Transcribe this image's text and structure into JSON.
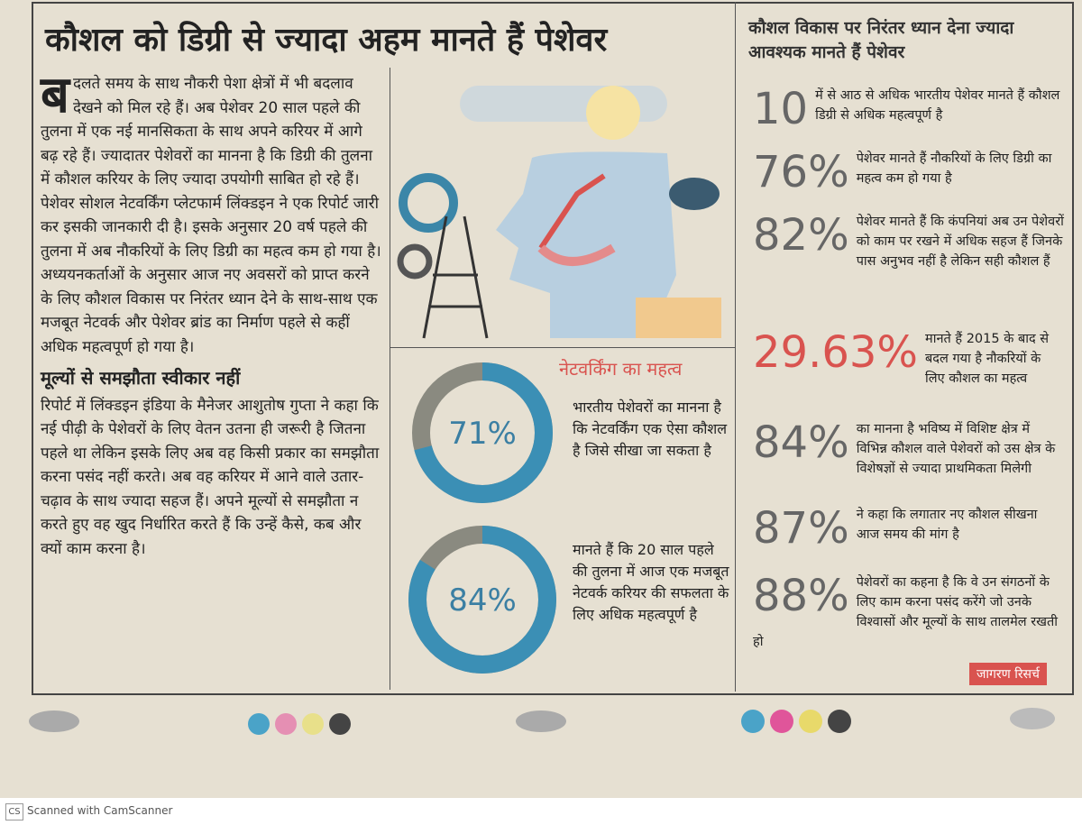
{
  "article": {
    "title": "कौशल को डिग्री से ज्यादा अहम मानते हैं पेशेवर",
    "dropcap": "ब",
    "para1": "दलते समय के साथ नौकरी पेशा क्षेत्रों में भी बदलाव देखने को मिल रहे हैं। अब पेशेवर 20 साल पहले की तुलना में एक नई मानसिकता के साथ अपने करियर में आगे बढ़ रहे हैं। ज्यादातर पेशेवरों का मानना है कि डिग्री की तुलना में कौशल करियर के लिए ज्यादा उपयोगी साबित हो रहे हैं। पेशेवर सोशल नेटवर्किंग प्लेटफार्म लिंक्डइन ने एक रिपोर्ट जारी कर इसकी जानकारी दी है। इसके अनुसार 20 वर्ष पहले की तुलना में अब नौकरियों के लिए डिग्री का महत्व कम हो गया है। अध्ययनकर्ताओं के अनुसार आज नए अवसरों को प्राप्त करने के लिए कौशल विकास पर निरंतर ध्यान देने के साथ-साथ एक मजबूत नेटवर्क और पेशेवर ब्रांड का निर्माण पहले से कहीं अधिक महत्वपूर्ण हो गया है।",
    "subheading": "मूल्यों से समझौता स्वीकार नहीं",
    "para2": "रिपोर्ट में लिंक्डइन इंडिया के मैनेजर आशुतोष गुप्ता ने कहा कि नई पीढ़ी के पेशेवरों के लिए वेतन उतना ही जरूरी है जितना पहले था लेकिन इसके लिए अब वह किसी प्रकार का समझौता करना पसंद नहीं करते। अब वह करियर में आने वाले उतार-चढ़ाव के साथ ज्यादा सहज हैं। अपने मूल्यों से समझौता न करते हुए वह खुद निर्धारित करते हैं कि उन्हें कैसे, कब और क्यों काम करना है।"
  },
  "networking": {
    "heading": "नेटवर्किंग का महत्व",
    "donuts": [
      {
        "value": 71,
        "label": "71%",
        "text": "भारतीय पेशेवरों का मानना है कि नेटवर्किंग एक ऐसा कौशल है जिसे सीखा जा सकता है"
      },
      {
        "value": 84,
        "label": "84%",
        "text": "मानते हैं कि 20 साल पहले की तुलना में आज एक मजबूत नेटवर्क करियर की सफलता के लिए अधिक महत्वपूर्ण है"
      }
    ]
  },
  "sidebar": {
    "heading": "कौशल विकास पर निरंतर ध्यान देना ज्यादा आवश्यक मानते हैं पेशेवर",
    "stats": [
      {
        "number": "10",
        "text": "में से आठ से अधिक भारतीय पेशेवर मानते हैं कौशल डिग्री से अधिक महत्वपूर्ण है"
      },
      {
        "number": "76%",
        "text": "पेशेवर मानते हैं नौकरियों के लिए डिग्री का महत्व कम हो गया है"
      },
      {
        "number": "82%",
        "text": "पेशेवर मानते हैं कि कंपनियां अब उन पेशेवरों को काम पर रखने में अधिक सहज हैं जिनके पास अनुभव नहीं है लेकिन सही कौशल हैं"
      },
      {
        "number": "29.63%",
        "text": "मानते हैं 2015 के बाद से बदल गया है नौकरियों के लिए कौशल का महत्व"
      },
      {
        "number": "84%",
        "text": "का मानना है भविष्य में विशिष्ट क्षेत्र में विभिन्न कौशल वाले पेशेवरों को उस क्षेत्र के विशेषज्ञों से ज्यादा प्राथमिकता मिलेगी"
      },
      {
        "number": "87%",
        "text": "ने कहा कि लगातार नए कौशल सीखना आज समय की मांग है"
      },
      {
        "number": "88%",
        "text": "पेशेवरों का कहना है कि वे उन संगठनों के लिए काम करना पसंद करेंगे जो उनके विश्वासों और मूल्यों के साथ तालमेल रखती हो"
      }
    ],
    "credit": "जागरण रिसर्च"
  },
  "footer": {
    "icon": "CS",
    "text": "Scanned with CamScanner"
  }
}
